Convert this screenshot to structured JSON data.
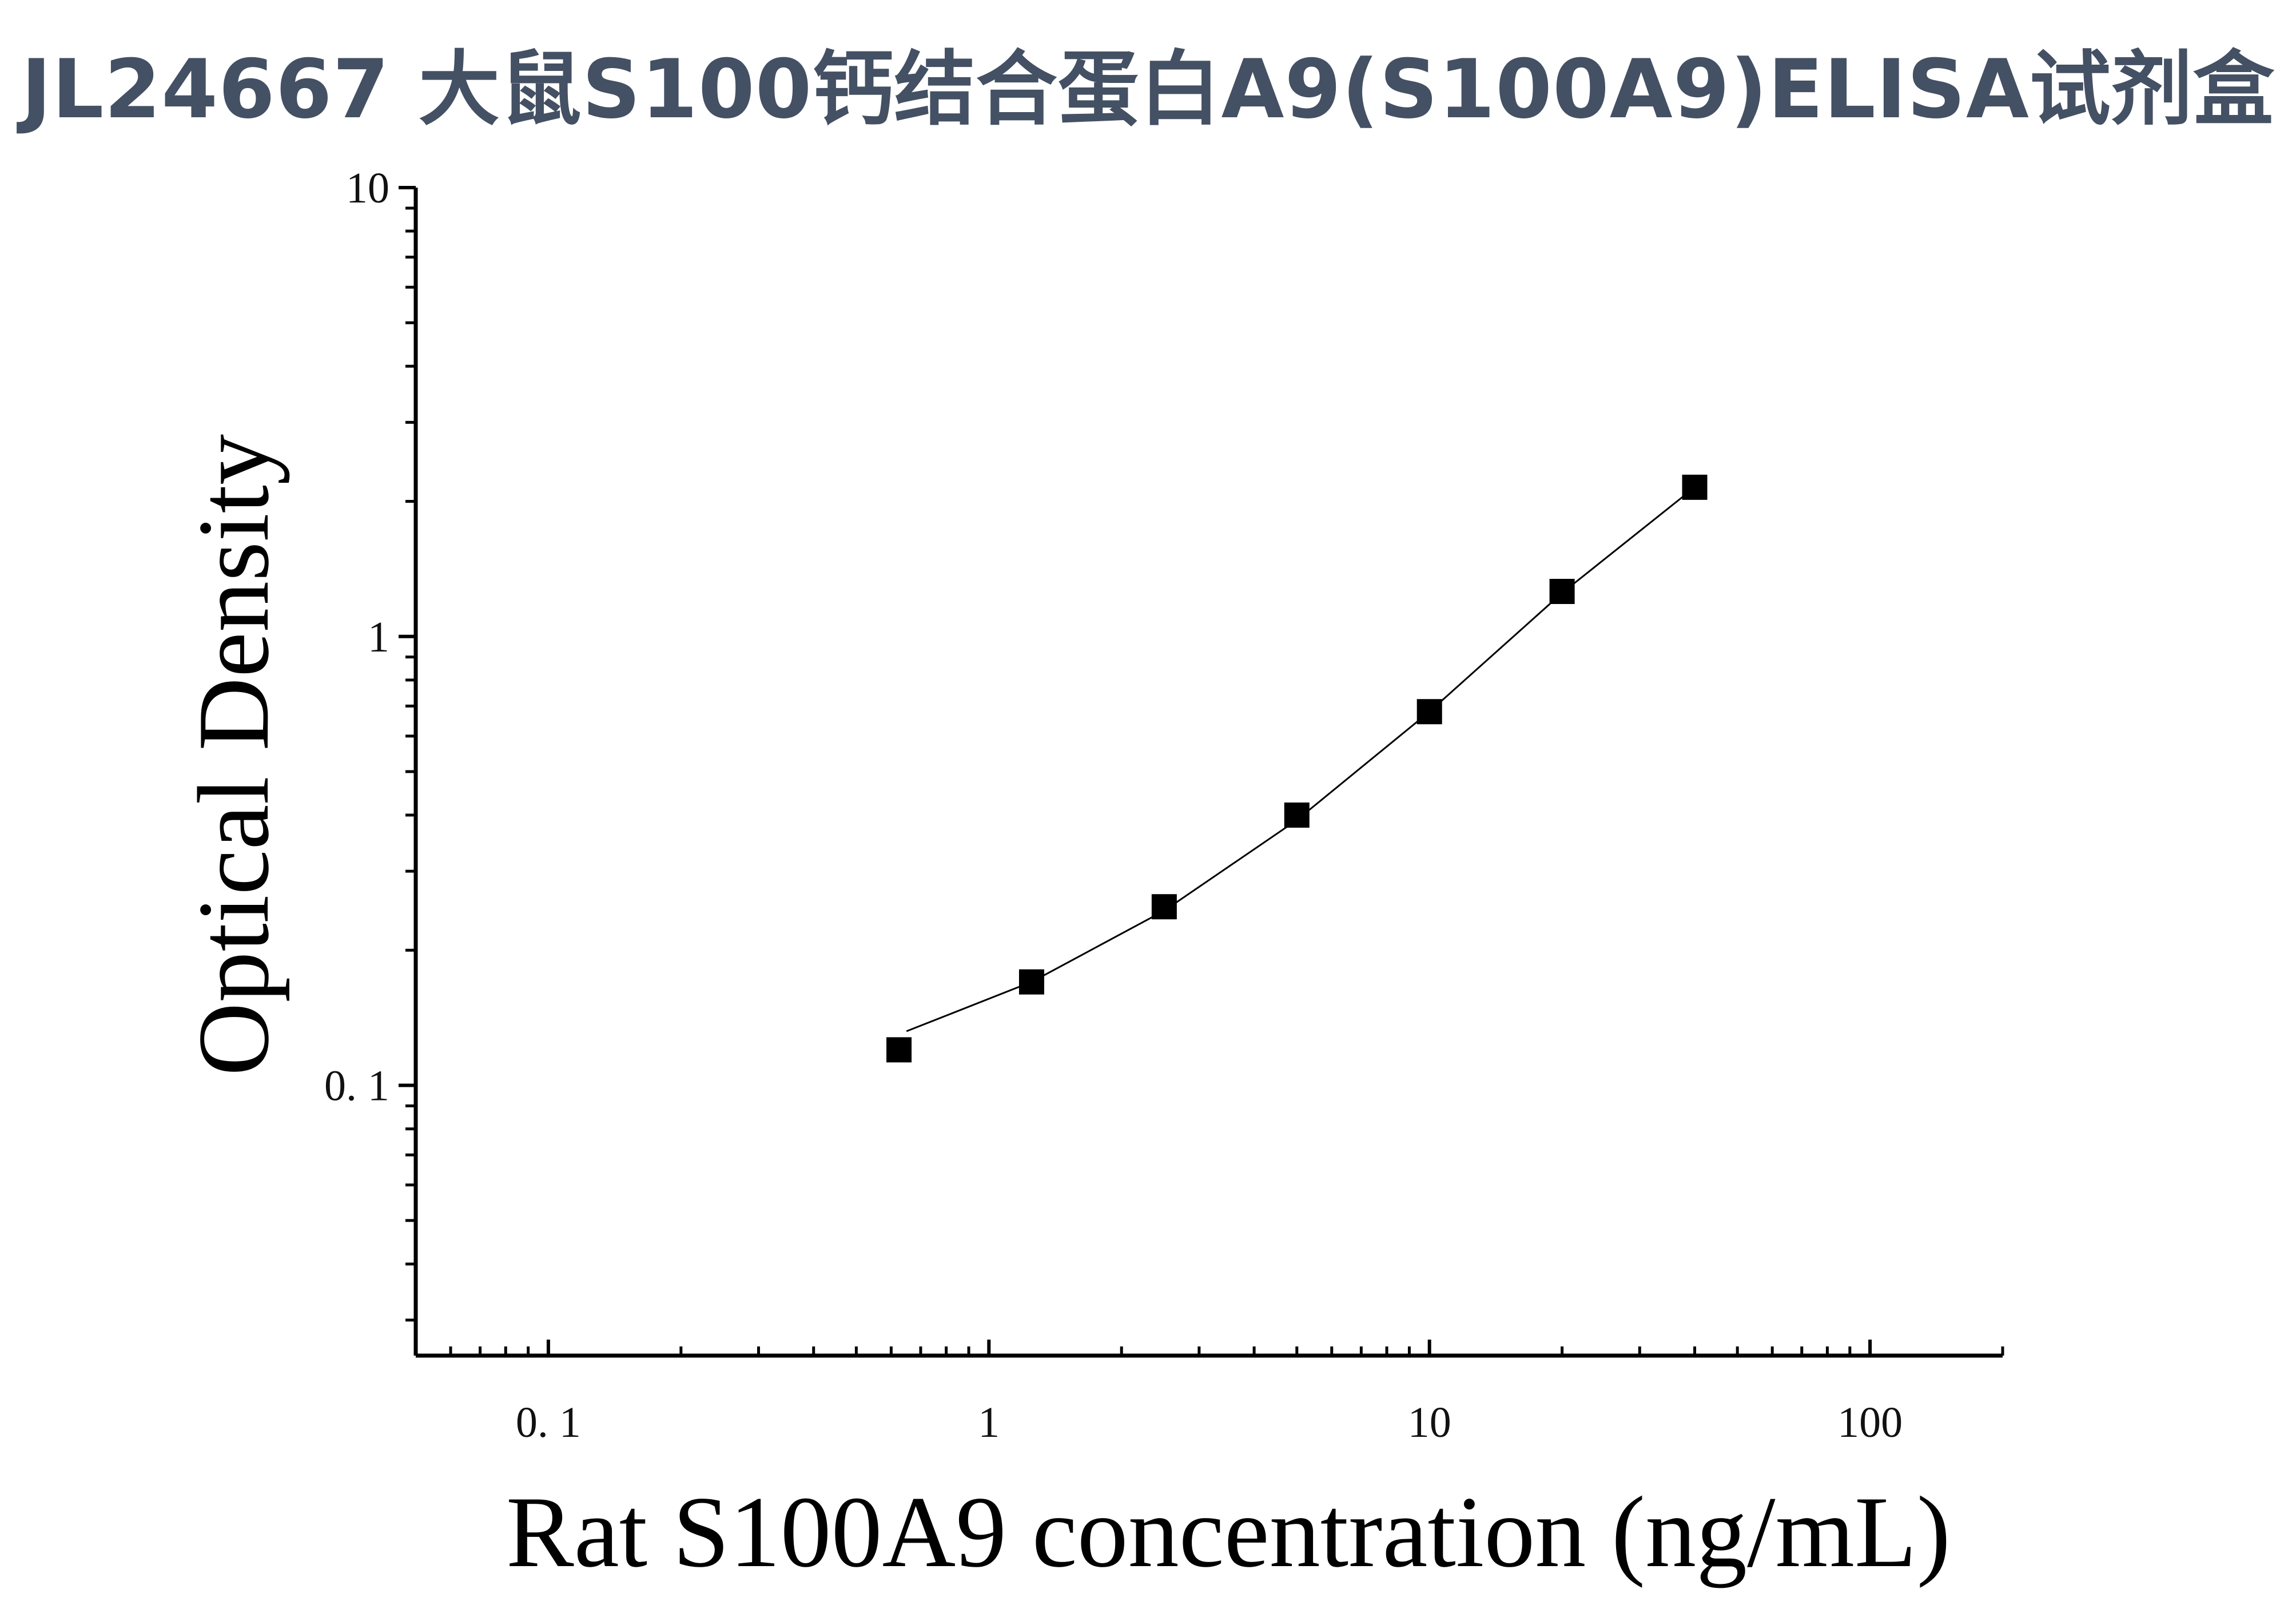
{
  "title": "JL24667 大鼠S100钙结合蛋白A9(S100A9)ELISA试剂盒",
  "chart_data": {
    "type": "scatter",
    "title": "JL24667 大鼠S100钙结合蛋白A9(S100A9)ELISA试剂盒",
    "xlabel": "Rat S100A9 concentration (ng/mL)",
    "ylabel": "Optical Density",
    "x_scale": "log",
    "y_scale": "log",
    "xlim": [
      0.05,
      200
    ],
    "ylim": [
      0.025,
      10
    ],
    "x_ticks": [
      {
        "value": 0.1,
        "label": "0. 1"
      },
      {
        "value": 1,
        "label": "1"
      },
      {
        "value": 10,
        "label": "10"
      },
      {
        "value": 100,
        "label": "100"
      }
    ],
    "y_ticks": [
      {
        "value": 0.1,
        "label": "0. 1"
      },
      {
        "value": 1,
        "label": "1"
      },
      {
        "value": 10,
        "label": "10"
      }
    ],
    "grid": false,
    "legend": "none",
    "series": [
      {
        "marker": "square",
        "color": "#000000",
        "x": [
          0.625,
          1.25,
          2.5,
          5,
          10,
          20,
          40
        ],
        "y": [
          0.12,
          0.17,
          0.25,
          0.4,
          0.68,
          1.26,
          2.15
        ]
      }
    ],
    "fit_curve": {
      "color": "#000000",
      "x": [
        0.65,
        1.25,
        2.5,
        5,
        10,
        20,
        40
      ],
      "y": [
        0.132,
        0.17,
        0.245,
        0.39,
        0.68,
        1.25,
        2.15
      ]
    }
  }
}
